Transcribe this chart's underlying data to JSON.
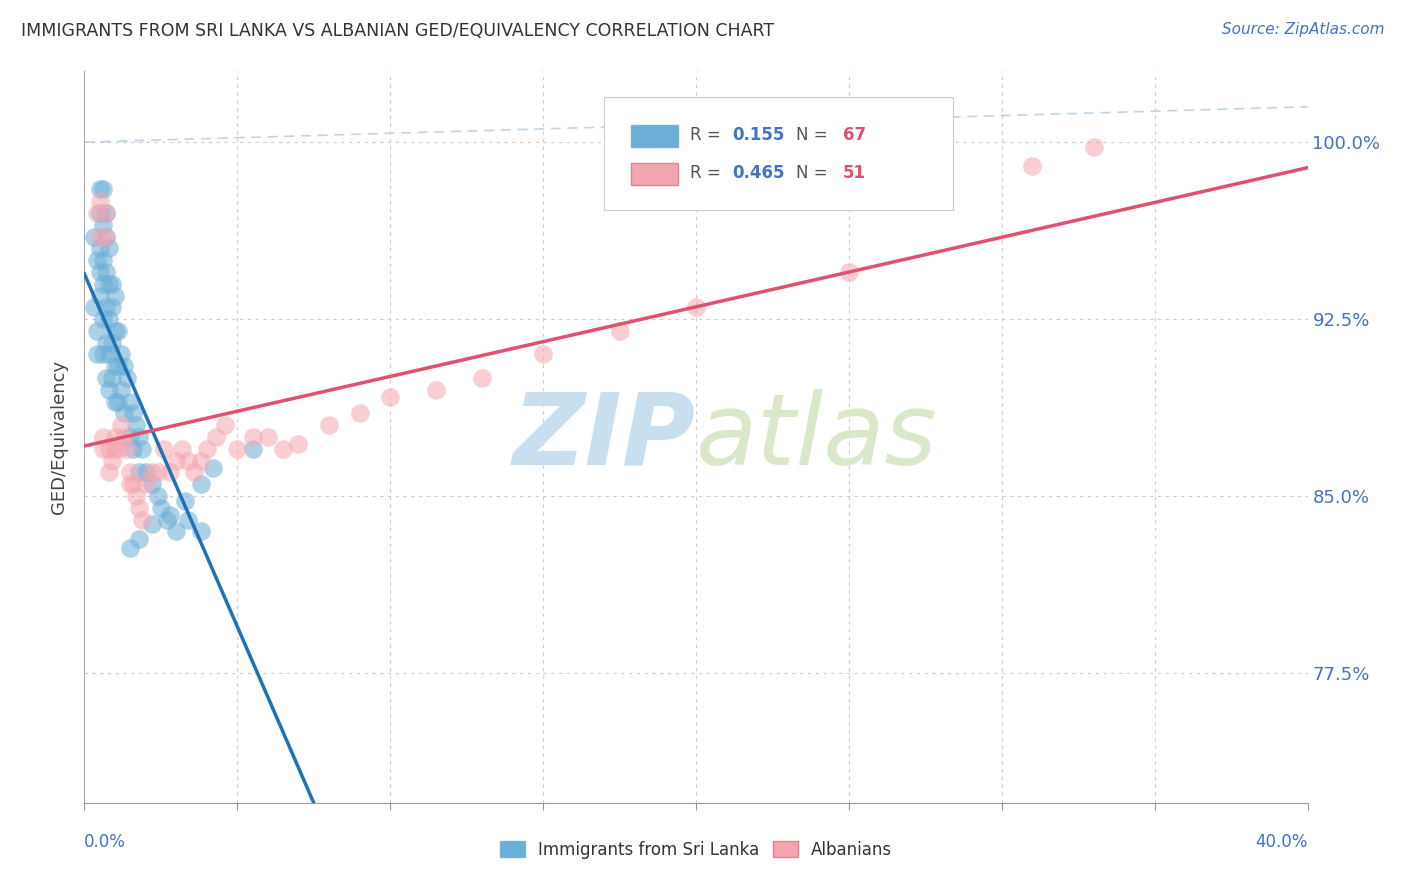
{
  "title": "IMMIGRANTS FROM SRI LANKA VS ALBANIAN GED/EQUIVALENCY CORRELATION CHART",
  "source": "Source: ZipAtlas.com",
  "ylabel": "GED/Equivalency",
  "yticks": [
    "77.5%",
    "85.0%",
    "92.5%",
    "100.0%"
  ],
  "ytick_vals": [
    0.775,
    0.85,
    0.925,
    1.0
  ],
  "xlim": [
    0.0,
    0.4
  ],
  "ylim": [
    0.72,
    1.03
  ],
  "r_sri": 0.155,
  "n_sri": 67,
  "r_alb": 0.465,
  "n_alb": 51,
  "color_sri": "#6baed6",
  "color_alb": "#f4a6b0",
  "line_color_sri": "#2171b5",
  "line_color_alb": "#e05070",
  "background_color": "#ffffff",
  "watermark_text": "ZIPatlas",
  "watermark_color": "#daeaf7",
  "xtick_positions": [
    0.0,
    0.05,
    0.1,
    0.15,
    0.2,
    0.25,
    0.3,
    0.35,
    0.4
  ]
}
